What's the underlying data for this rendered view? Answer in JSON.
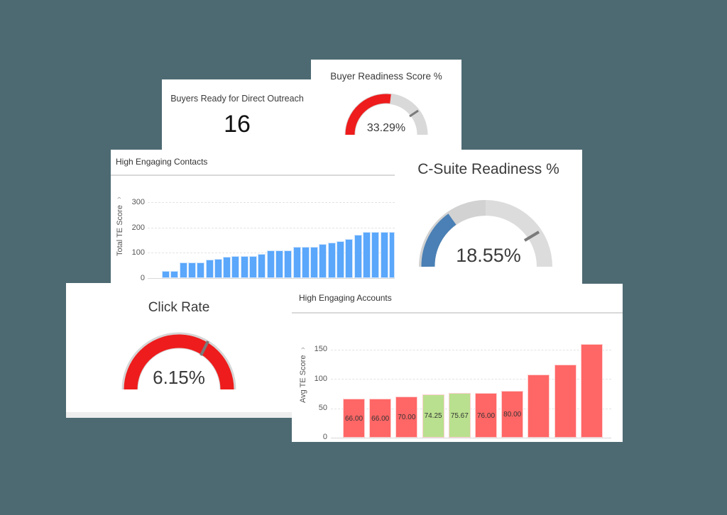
{
  "colors": {
    "background": "#4d6a72",
    "gauge_red": "#ee1c1c",
    "gauge_blue": "#4a80b5",
    "gauge_track": "#d9d9d9",
    "gauge_marker": "#7a7a7a",
    "bar_blue": "#5aa7fb",
    "bar_red": "#ff6666",
    "bar_green": "#b9e08e"
  },
  "buyers_ready": {
    "title": "Buyers Ready for Direct Outreach",
    "value": "16"
  },
  "buyer_readiness": {
    "title": "Buyer Readiness Score %",
    "value_label": "33.29%",
    "value": 33.29
  },
  "csuite_readiness": {
    "title": "C-Suite Readiness %",
    "value_label": "18.55%",
    "value": 18.55
  },
  "click_rate": {
    "title": "Click Rate",
    "value_label": "6.15%",
    "value": 6.15
  },
  "high_engaging_contacts": {
    "title": "High Engaging Contacts",
    "ylabel": "Total TE Score",
    "ticks": [
      "300",
      "200",
      "100",
      "0"
    ]
  },
  "high_engaging_accounts": {
    "title": "High Engaging Accounts",
    "ylabel": "Avg TE Score",
    "ticks": [
      "150",
      "100",
      "50",
      "0"
    ],
    "bar_labels": [
      "66.00",
      "66.00",
      "70.00",
      "74.25",
      "75.67",
      "76.00",
      "80.00"
    ]
  },
  "chart_data": [
    {
      "type": "bar",
      "title": "High Engaging Contacts",
      "xlabel": "",
      "ylabel": "Total TE Score",
      "ylim": [
        0,
        300
      ],
      "grid": true,
      "values": [
        27,
        27,
        61,
        63,
        63,
        72,
        75,
        84,
        87,
        87,
        87,
        95,
        110,
        110,
        110,
        123,
        123,
        123,
        135,
        140,
        147,
        155,
        171,
        181,
        181,
        181,
        181
      ],
      "color": "#5aa7fb"
    },
    {
      "type": "bar",
      "title": "High Engaging Accounts",
      "xlabel": "",
      "ylabel": "Avg TE Score",
      "ylim": [
        0,
        150
      ],
      "grid": true,
      "values": [
        66.0,
        66.0,
        70.0,
        74.25,
        75.67,
        76.0,
        80.0,
        108,
        124,
        160
      ],
      "colors": [
        "#ff6666",
        "#ff6666",
        "#ff6666",
        "#b9e08e",
        "#b9e08e",
        "#ff6666",
        "#ff6666",
        "#ff6666",
        "#ff6666",
        "#ff6666"
      ],
      "data_labels": [
        "66.00",
        "66.00",
        "70.00",
        "74.25",
        "75.67",
        "76.00",
        "80.00",
        "",
        "",
        ""
      ]
    },
    {
      "type": "gauge",
      "title": "Buyer Readiness Score %",
      "value": 33.29,
      "unit": "%"
    },
    {
      "type": "gauge",
      "title": "C-Suite Readiness %",
      "value": 18.55,
      "unit": "%"
    },
    {
      "type": "gauge",
      "title": "Click Rate",
      "value": 6.15,
      "unit": "%"
    }
  ]
}
